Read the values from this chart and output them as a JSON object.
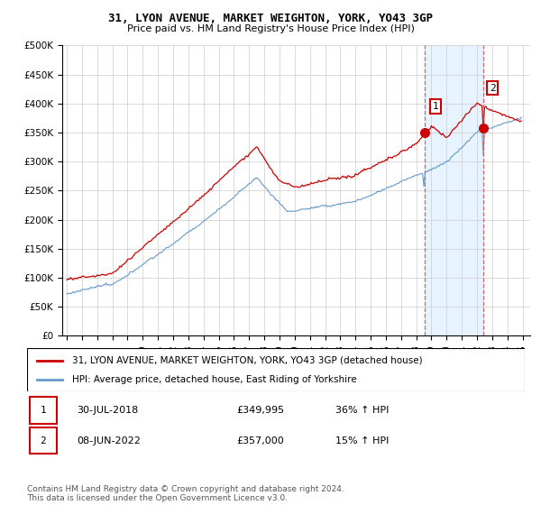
{
  "title": "31, LYON AVENUE, MARKET WEIGHTON, YORK, YO43 3GP",
  "subtitle": "Price paid vs. HM Land Registry's House Price Index (HPI)",
  "legend_line1": "31, LYON AVENUE, MARKET WEIGHTON, YORK, YO43 3GP (detached house)",
  "legend_line2": "HPI: Average price, detached house, East Riding of Yorkshire",
  "footnote": "Contains HM Land Registry data © Crown copyright and database right 2024.\nThis data is licensed under the Open Government Licence v3.0.",
  "annotation1_date": "30-JUL-2018",
  "annotation1_price": "£349,995",
  "annotation1_hpi": "36% ↑ HPI",
  "annotation2_date": "08-JUN-2022",
  "annotation2_price": "£357,000",
  "annotation2_hpi": "15% ↑ HPI",
  "hpi_color": "#6699cc",
  "price_color": "#cc0000",
  "marker_color": "#cc0000",
  "vline_color": "#cc6666",
  "shade_color": "#ddeeff",
  "yticks": [
    0,
    50000,
    100000,
    150000,
    200000,
    250000,
    300000,
    350000,
    400000,
    450000,
    500000
  ],
  "sale1_year": 2018.583,
  "sale1_price": 349995,
  "sale2_year": 2022.417,
  "sale2_price": 357000
}
